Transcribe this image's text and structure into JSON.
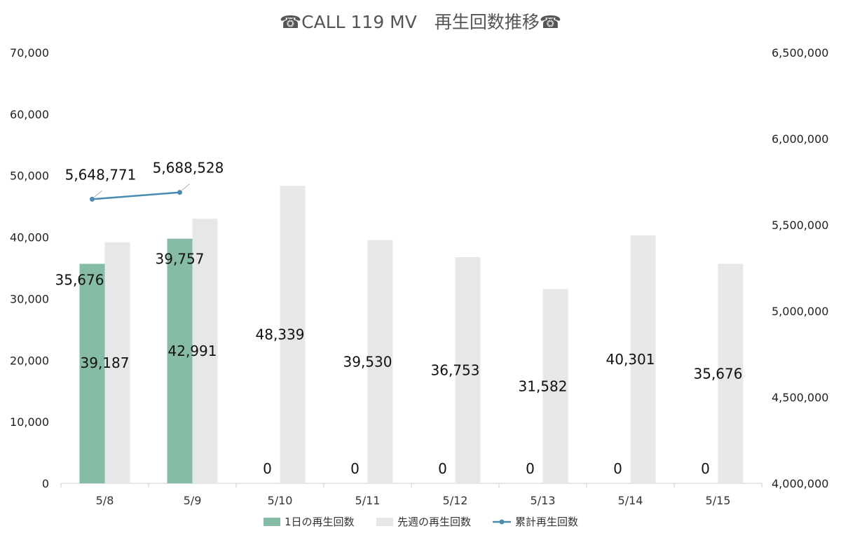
{
  "chart_data": {
    "type": "bar",
    "title": "☎CALL 119 MV　再生回数推移☎",
    "categories": [
      "5/8",
      "5/9",
      "5/10",
      "5/11",
      "5/12",
      "5/13",
      "5/14",
      "5/15"
    ],
    "series": [
      {
        "name": "1日の再生回数",
        "type": "bar",
        "axis": "left",
        "color": "#86bca6",
        "values": [
          35676,
          39757,
          0,
          0,
          0,
          0,
          0,
          0
        ]
      },
      {
        "name": "先週の再生回数",
        "type": "bar",
        "axis": "left",
        "color": "#e6e7e8",
        "values": [
          39187,
          42991,
          48339,
          39530,
          36753,
          31582,
          40301,
          35676
        ]
      },
      {
        "name": "累計再生回数",
        "type": "line",
        "axis": "right",
        "color": "#4a8bb0",
        "values": [
          5648771,
          5688528,
          null,
          null,
          null,
          null,
          null,
          null
        ]
      }
    ],
    "y_left": {
      "min": 0,
      "max": 70000,
      "ticks": [
        "0",
        "10,000",
        "20,000",
        "30,000",
        "40,000",
        "50,000",
        "60,000",
        "70,000"
      ]
    },
    "y_right": {
      "min": 4000000,
      "max": 6500000,
      "ticks": [
        "4,000,000",
        "4,500,000",
        "5,000,000",
        "5,500,000",
        "6,000,000",
        "6,500,000"
      ]
    },
    "data_labels": {
      "daily": [
        "35,676",
        "39,757",
        "0",
        "0",
        "0",
        "0",
        "0",
        "0"
      ],
      "last_week": [
        "39,187",
        "42,991",
        "48,339",
        "39,530",
        "36,753",
        "31,582",
        "40,301",
        "35,676"
      ],
      "cumulative": [
        "5,648,771",
        "5,688,528"
      ]
    },
    "grid": false,
    "legend_position": "bottom"
  }
}
